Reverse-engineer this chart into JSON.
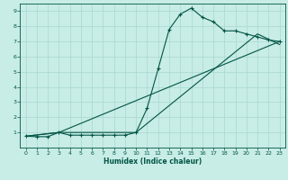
{
  "xlabel": "Humidex (Indice chaleur)",
  "bg_color": "#c8ece6",
  "line_color": "#005544",
  "grid_color": "#a8d8d0",
  "xlim": [
    -0.5,
    23.5
  ],
  "ylim": [
    0,
    9.5
  ],
  "xticks": [
    0,
    1,
    2,
    3,
    4,
    5,
    6,
    7,
    8,
    9,
    10,
    11,
    12,
    13,
    14,
    15,
    16,
    17,
    18,
    19,
    20,
    21,
    22,
    23
  ],
  "yticks": [
    1,
    2,
    3,
    4,
    5,
    6,
    7,
    8,
    9
  ],
  "line1_x": [
    0,
    1,
    2,
    3,
    4,
    5,
    6,
    7,
    8,
    9,
    10,
    11,
    12,
    13,
    14,
    15,
    16,
    17,
    18,
    19,
    20,
    21,
    22,
    23
  ],
  "line1_y": [
    0.75,
    0.72,
    0.72,
    1.0,
    0.82,
    0.82,
    0.82,
    0.82,
    0.82,
    0.82,
    1.0,
    2.6,
    5.2,
    7.8,
    8.8,
    9.2,
    8.6,
    8.3,
    7.7,
    7.7,
    7.5,
    7.3,
    7.1,
    7.0
  ],
  "line2_x": [
    0,
    3,
    23
  ],
  "line2_y": [
    0.75,
    1.0,
    7.0
  ],
  "line3_x": [
    0,
    3,
    10,
    21,
    23
  ],
  "line3_y": [
    0.75,
    1.0,
    1.0,
    7.5,
    6.8
  ]
}
